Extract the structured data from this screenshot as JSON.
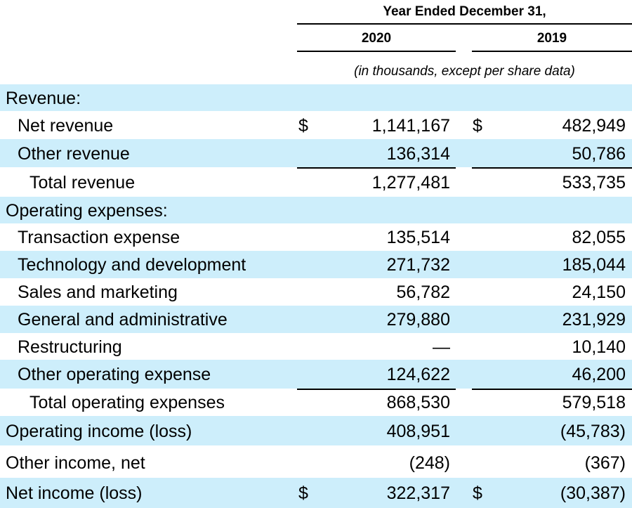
{
  "header": {
    "period": "Year Ended December 31,",
    "col1": "2020",
    "col2": "2019",
    "units": "(in thousands, except per share data)"
  },
  "rows": [
    {
      "label": "Revenue:",
      "indent": 0,
      "shade": true,
      "v1": "",
      "v2": "",
      "d1": "",
      "d2": ""
    },
    {
      "label": "Net revenue",
      "indent": 1,
      "shade": false,
      "v1": "1,141,167",
      "v2": "482,949",
      "d1": "$",
      "d2": "$"
    },
    {
      "label": "Other revenue",
      "indent": 1,
      "shade": true,
      "v1": "136,314",
      "v2": "50,786",
      "d1": "",
      "d2": ""
    },
    {
      "label": "Total revenue",
      "indent": 2,
      "shade": false,
      "v1": "1,277,481",
      "v2": "533,735",
      "d1": "",
      "d2": ""
    },
    {
      "label": "Operating expenses:",
      "indent": 0,
      "shade": true,
      "v1": "",
      "v2": "",
      "d1": "",
      "d2": ""
    },
    {
      "label": "Transaction expense",
      "indent": 1,
      "shade": false,
      "v1": "135,514",
      "v2": "82,055",
      "d1": "",
      "d2": ""
    },
    {
      "label": "Technology and development",
      "indent": 1,
      "shade": true,
      "v1": "271,732",
      "v2": "185,044",
      "d1": "",
      "d2": ""
    },
    {
      "label": "Sales and marketing",
      "indent": 1,
      "shade": false,
      "v1": "56,782",
      "v2": "24,150",
      "d1": "",
      "d2": ""
    },
    {
      "label": "General and administrative",
      "indent": 1,
      "shade": true,
      "v1": "279,880",
      "v2": "231,929",
      "d1": "",
      "d2": ""
    },
    {
      "label": "Restructuring",
      "indent": 1,
      "shade": false,
      "v1": "—",
      "v2": "10,140",
      "d1": "",
      "d2": ""
    },
    {
      "label": "Other operating expense",
      "indent": 1,
      "shade": true,
      "v1": "124,622",
      "v2": "46,200",
      "d1": "",
      "d2": ""
    },
    {
      "label": "Total operating expenses",
      "indent": 2,
      "shade": false,
      "v1": "868,530",
      "v2": "579,518",
      "d1": "",
      "d2": ""
    },
    {
      "label": "Operating income (loss)",
      "indent": 0,
      "shade": true,
      "v1": "408,951",
      "v2": "(45,783)",
      "d1": "",
      "d2": ""
    },
    {
      "label": "Other income, net",
      "indent": 0,
      "shade": false,
      "v1": "(248)",
      "v2": "(367)",
      "d1": "",
      "d2": ""
    },
    {
      "label": "Net income (loss)",
      "indent": 0,
      "shade": true,
      "v1": "322,317",
      "v2": "(30,387)",
      "d1": "$",
      "d2": "$"
    }
  ]
}
